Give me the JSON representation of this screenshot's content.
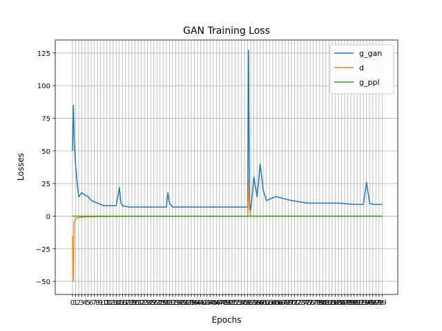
{
  "chart_data": {
    "type": "line",
    "title": "GAN Training Loss",
    "xlabel": "Epochs",
    "ylabel": "Losses",
    "grid": true,
    "legend_position": "top-right",
    "xlim": [
      -5.5,
      104
    ],
    "ylim": [
      -60,
      135
    ],
    "yticks": [
      -50,
      -25,
      0,
      25,
      50,
      75,
      100,
      125
    ],
    "ytick_labels": [
      "−50",
      "−25",
      "0",
      "25",
      "50",
      "75",
      "100",
      "125"
    ],
    "xticks": [
      0,
      1,
      2,
      3,
      4,
      5,
      6,
      7,
      8,
      9,
      10,
      11,
      12,
      13,
      14,
      15,
      16,
      17,
      18,
      19,
      20,
      21,
      22,
      23,
      24,
      25,
      26,
      27,
      28,
      29,
      30,
      31,
      32,
      33,
      34,
      35,
      36,
      37,
      38,
      39,
      40,
      41,
      42,
      43,
      44,
      45,
      46,
      47,
      48,
      49,
      50,
      51,
      52,
      53,
      54,
      55,
      56,
      57,
      58,
      59,
      60,
      61,
      62,
      63,
      64,
      65,
      66,
      67,
      68,
      69,
      70,
      71,
      72,
      73,
      74,
      75,
      76,
      77,
      78,
      79,
      80,
      81,
      82,
      83,
      84,
      85,
      86,
      87,
      88,
      89,
      90,
      91,
      92,
      93,
      94,
      95,
      96,
      97,
      98,
      99
    ],
    "series": [
      {
        "name": "g_gan",
        "color": "#1f77b4",
        "x": [
          0,
          0.3,
          0.6,
          1,
          1.5,
          2,
          3,
          4,
          5,
          6,
          8,
          10,
          12,
          14,
          15,
          15.5,
          16,
          18,
          20,
          25,
          30,
          30.5,
          31,
          32,
          35,
          40,
          45,
          50,
          55,
          56,
          56.3,
          56.6,
          57,
          58,
          59,
          60,
          61,
          62,
          65,
          70,
          75,
          80,
          85,
          90,
          93,
          94,
          95,
          96,
          97,
          98,
          99
        ],
        "y": [
          50,
          85,
          55,
          40,
          25,
          15,
          18,
          16,
          15,
          12,
          10,
          8,
          8,
          8,
          22,
          10,
          8,
          7,
          7,
          7,
          7,
          18,
          10,
          7,
          7,
          7,
          7,
          7,
          7,
          7,
          127,
          10,
          5,
          30,
          15,
          40,
          20,
          12,
          15,
          12,
          10,
          10,
          10,
          9,
          9,
          26,
          10,
          9,
          9,
          9,
          9
        ]
      },
      {
        "name": "d",
        "color": "#ff7f0e",
        "x": [
          0,
          0.3,
          0.5,
          1,
          2,
          5,
          10,
          20,
          30,
          40,
          50,
          56,
          56.3,
          56.6,
          57,
          60,
          70,
          80,
          90,
          99
        ],
        "y": [
          -15,
          -50,
          -5,
          -2,
          -1,
          -0.5,
          -0.3,
          -0.2,
          -0.2,
          -0.2,
          -0.2,
          -0.2,
          27,
          5,
          0,
          0,
          0,
          0,
          0,
          0
        ]
      },
      {
        "name": "g_ppl",
        "color": "#2ca02c",
        "x": [
          0,
          10,
          20,
          30,
          40,
          50,
          60,
          70,
          80,
          90,
          99
        ],
        "y": [
          0,
          0,
          0,
          0,
          0,
          0,
          0,
          0,
          0,
          0,
          0
        ]
      }
    ]
  }
}
